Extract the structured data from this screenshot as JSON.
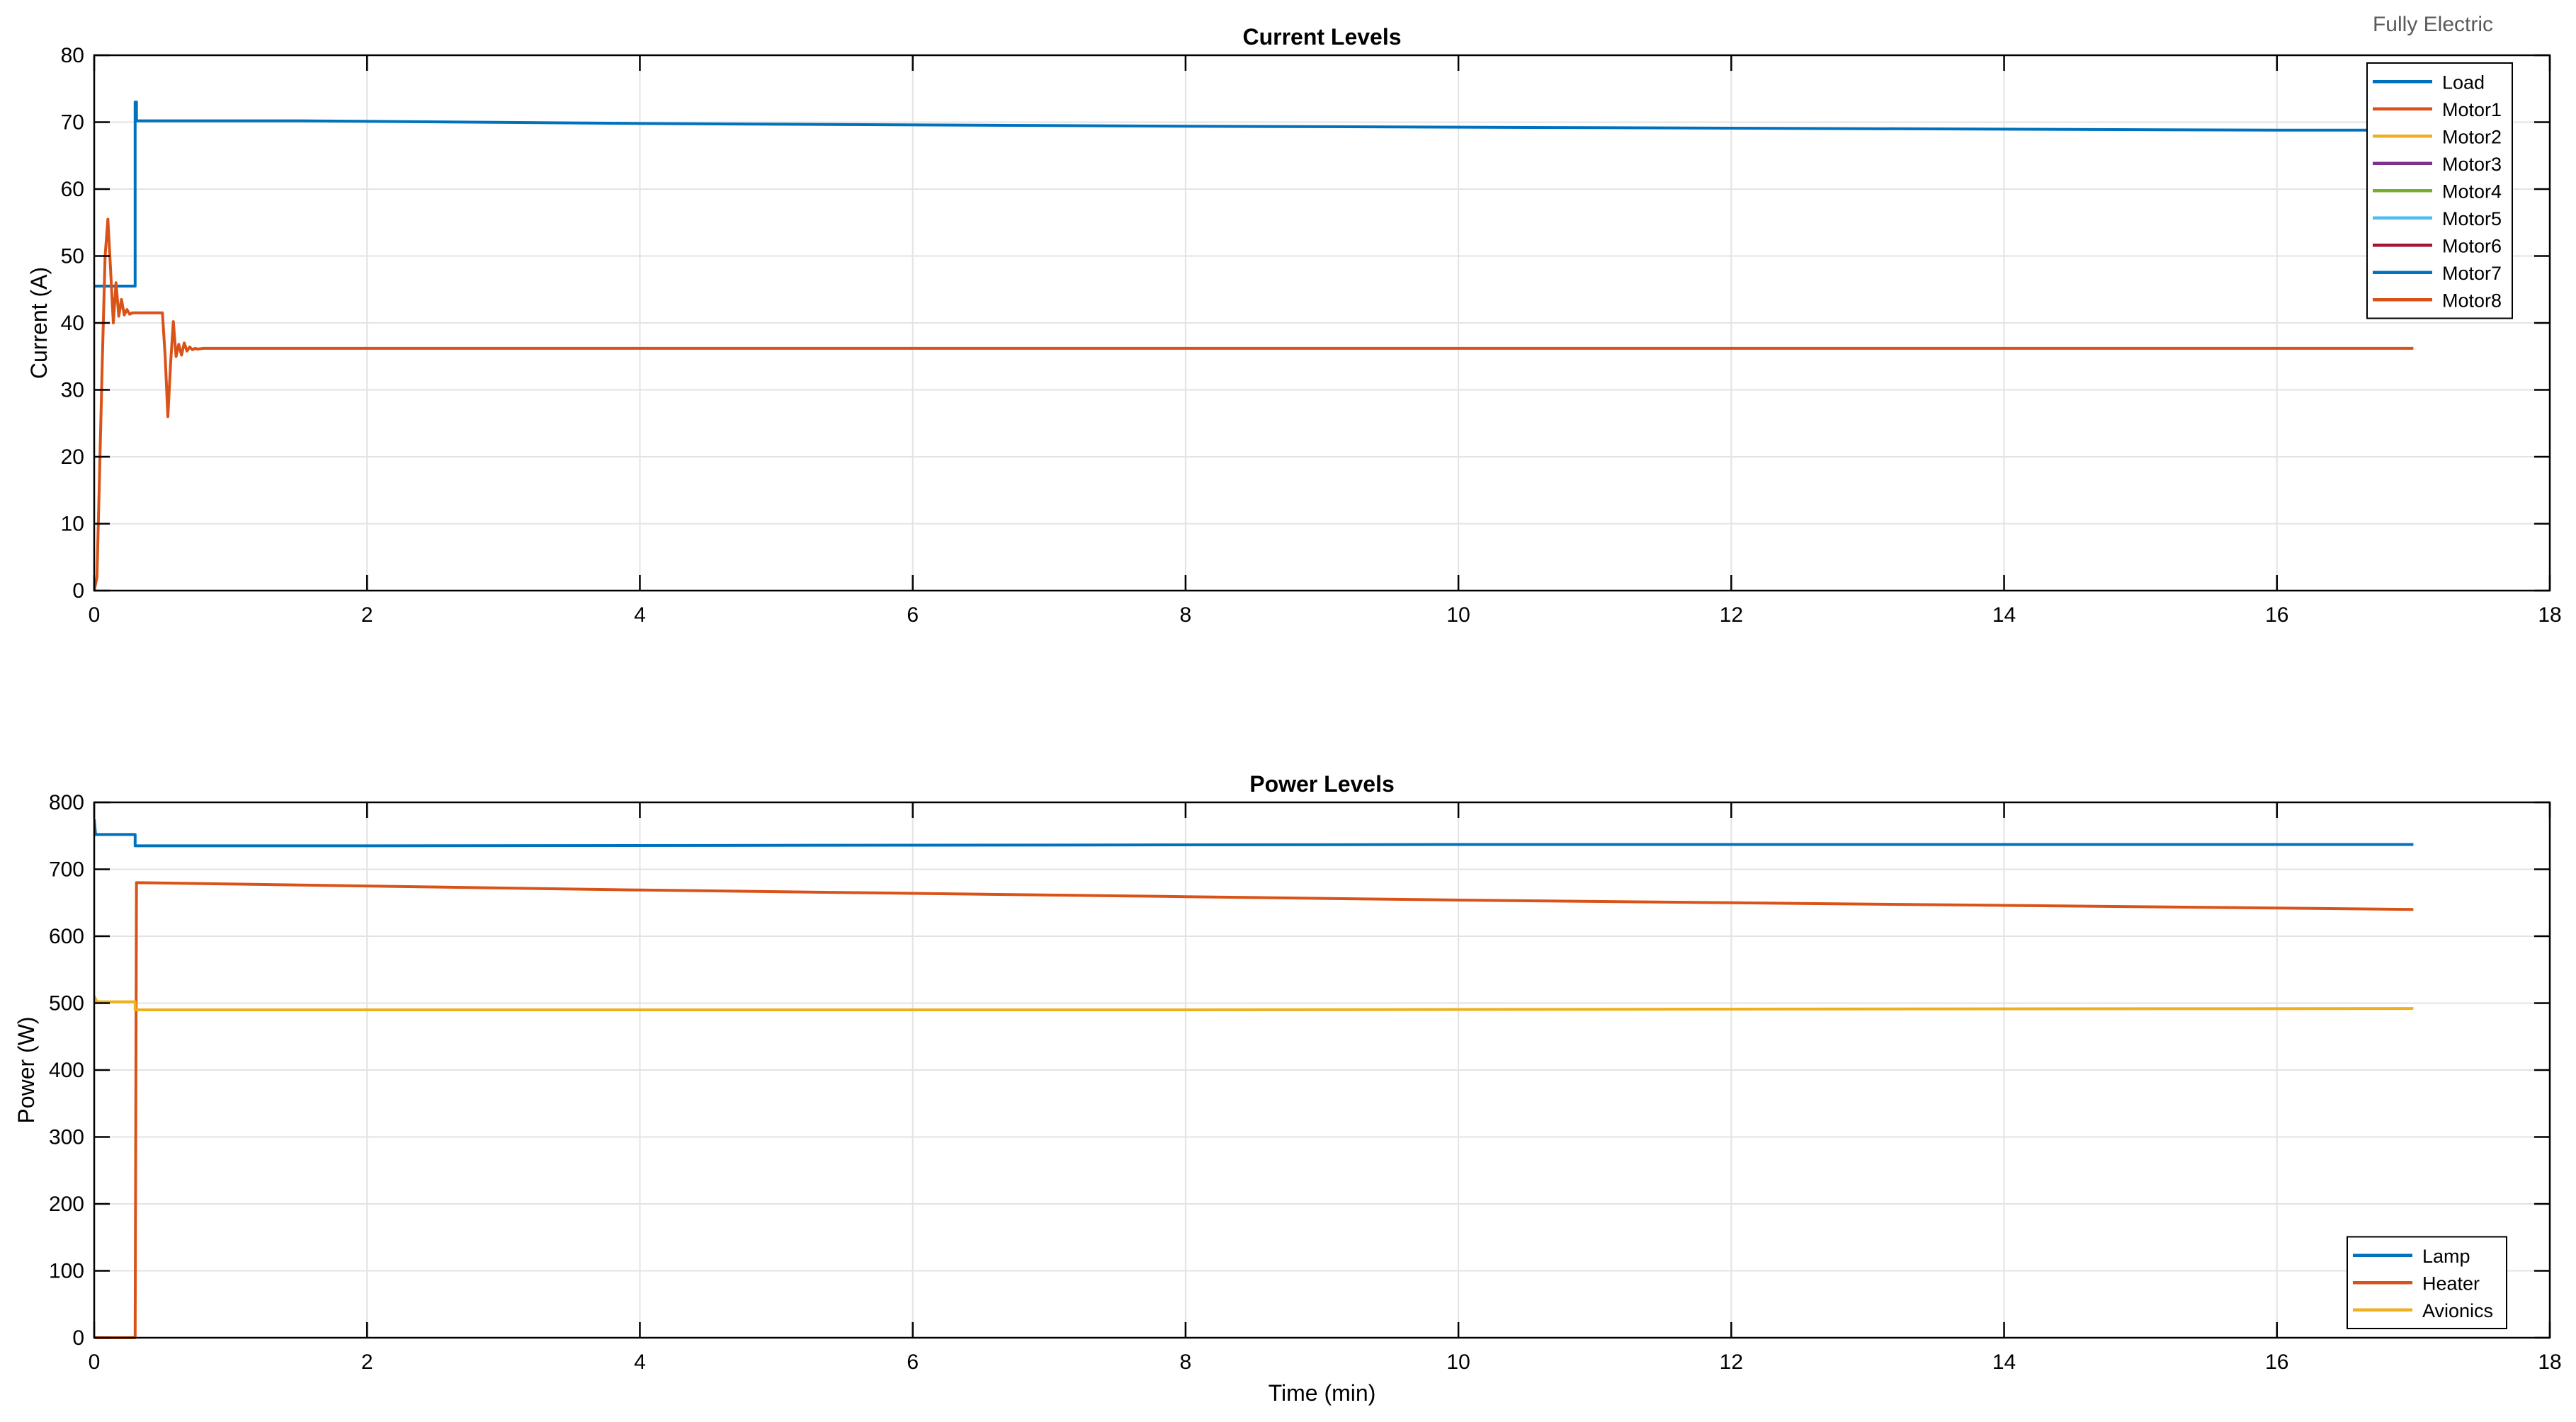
{
  "figure": {
    "corner_label": "Fully Electric"
  },
  "chart_data": [
    {
      "type": "line",
      "title": "Current Levels",
      "xlabel": "",
      "ylabel": "Current (A)",
      "xlim": [
        0,
        18
      ],
      "ylim": [
        0,
        80
      ],
      "xticks": [
        0,
        2,
        4,
        6,
        8,
        10,
        12,
        14,
        16,
        18
      ],
      "yticks": [
        0,
        10,
        20,
        30,
        40,
        50,
        60,
        70,
        80
      ],
      "grid": true,
      "legend_position": "top-right",
      "legend": [
        {
          "name": "Load",
          "color": "#0072BD"
        },
        {
          "name": "Motor1",
          "color": "#D95319"
        },
        {
          "name": "Motor2",
          "color": "#EDB120"
        },
        {
          "name": "Motor3",
          "color": "#7E2F8E"
        },
        {
          "name": "Motor4",
          "color": "#77AC30"
        },
        {
          "name": "Motor5",
          "color": "#4DBEEE"
        },
        {
          "name": "Motor6",
          "color": "#A2142F"
        },
        {
          "name": "Motor7",
          "color": "#0072BD"
        },
        {
          "name": "Motor8",
          "color": "#D95319"
        }
      ],
      "series": [
        {
          "name": "Load",
          "color": "#0072BD",
          "x": [
            0,
            0.3,
            0.3,
            0.31,
            0.31,
            1.5,
            4,
            8,
            12,
            16,
            17
          ],
          "y": [
            45.5,
            45.5,
            73,
            73,
            70.2,
            70.2,
            69.8,
            69.4,
            69.1,
            68.8,
            68.8
          ]
        },
        {
          "name": "Motor1",
          "color": "#D95319",
          "x": [
            0,
            0.02,
            0.04,
            0.06,
            0.08,
            0.1,
            0.12,
            0.14,
            0.16,
            0.18,
            0.2,
            0.22,
            0.24,
            0.26,
            0.28,
            0.3,
            0.35,
            0.4,
            0.45,
            0.5,
            0.52,
            0.54,
            0.56,
            0.58,
            0.6,
            0.62,
            0.64,
            0.66,
            0.68,
            0.7,
            0.72,
            0.74,
            0.76,
            0.8,
            1,
            4,
            8,
            12,
            16,
            17
          ],
          "y": [
            0,
            2,
            18,
            35,
            50,
            55.5,
            48,
            40,
            46,
            41,
            43.5,
            41.2,
            42,
            41.3,
            41.5,
            41.5,
            41.5,
            41.5,
            41.5,
            41.5,
            35,
            26,
            34,
            40.2,
            35,
            36.8,
            35.2,
            37,
            35.8,
            36.4,
            36,
            36.2,
            36.1,
            36.2,
            36.2,
            36.2,
            36.2,
            36.2,
            36.2,
            36.2
          ]
        }
      ]
    },
    {
      "type": "line",
      "title": "Power Levels",
      "xlabel": "Time (min)",
      "ylabel": "Power (W)",
      "xlim": [
        0,
        18
      ],
      "ylim": [
        0,
        800
      ],
      "xticks": [
        0,
        2,
        4,
        6,
        8,
        10,
        12,
        14,
        16,
        18
      ],
      "yticks": [
        0,
        100,
        200,
        300,
        400,
        500,
        600,
        700,
        800
      ],
      "grid": true,
      "legend_position": "bottom-right",
      "legend": [
        {
          "name": "Lamp",
          "color": "#0072BD"
        },
        {
          "name": "Heater",
          "color": "#D95319"
        },
        {
          "name": "Avionics",
          "color": "#EDB120"
        }
      ],
      "series": [
        {
          "name": "Lamp",
          "color": "#0072BD",
          "x": [
            0,
            0.01,
            0.3,
            0.3,
            2,
            6,
            10,
            14,
            17
          ],
          "y": [
            775,
            752,
            752,
            735,
            735,
            736,
            737,
            737,
            737
          ]
        },
        {
          "name": "Heater",
          "color": "#D95319",
          "x": [
            0,
            0.3,
            0.3,
            0.31,
            2,
            4,
            6,
            8,
            10,
            12,
            14,
            16,
            17
          ],
          "y": [
            0,
            0,
            0,
            680,
            675,
            669,
            664,
            659,
            654,
            650,
            646,
            642,
            640
          ]
        },
        {
          "name": "Avionics",
          "color": "#EDB120",
          "x": [
            0,
            0.02,
            0.3,
            0.3,
            4,
            8,
            12,
            17
          ],
          "y": [
            510,
            502,
            502,
            490,
            490,
            490,
            491,
            492
          ]
        }
      ]
    }
  ]
}
